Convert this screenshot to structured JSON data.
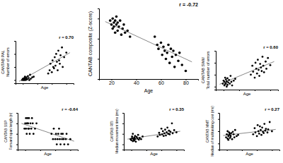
{
  "chart_data": [
    {
      "type": "scatter",
      "annotation": "r = 0.70",
      "x_label": "Age",
      "y_label": [
        "CANTAB PAL",
        "Number of errors"
      ],
      "x": [
        19,
        20,
        21,
        21,
        22,
        22,
        23,
        23,
        24,
        24,
        25,
        25,
        26,
        27,
        28,
        29,
        30,
        31,
        33,
        35,
        55,
        57,
        58,
        60,
        61,
        62,
        63,
        64,
        65,
        66,
        67,
        68,
        69,
        70,
        71,
        72,
        74,
        75,
        77,
        80
      ],
      "values": [
        0,
        2,
        0,
        1,
        3,
        0,
        5,
        2,
        1,
        0,
        4,
        2,
        1,
        6,
        3,
        0,
        8,
        2,
        4,
        5,
        10,
        15,
        25,
        12,
        30,
        20,
        18,
        35,
        22,
        40,
        28,
        15,
        45,
        30,
        25,
        38,
        50,
        20,
        35,
        42
      ],
      "trend": {
        "x": [
          15,
          85
        ],
        "y": [
          -2,
          42
        ]
      },
      "xlim": [
        10,
        90
      ],
      "xticks": [
        20,
        40,
        60,
        80
      ],
      "ylim": [
        -5,
        60
      ],
      "yticks": [
        0,
        20,
        40,
        60
      ],
      "tick_labels": false,
      "color": "#000000"
    },
    {
      "type": "scatter",
      "annotation": "r = -0.72",
      "x_label": "Age",
      "y_label": [
        "CANTAB composite (Z-score)"
      ],
      "x": [
        19,
        20,
        21,
        21,
        22,
        22,
        23,
        23,
        24,
        24,
        25,
        25,
        26,
        27,
        28,
        29,
        30,
        31,
        33,
        35,
        55,
        57,
        58,
        60,
        61,
        62,
        63,
        64,
        65,
        66,
        67,
        68,
        69,
        70,
        71,
        72,
        74,
        75,
        77,
        80
      ],
      "values": [
        0.9,
        0.7,
        1.0,
        0.5,
        0.8,
        0.6,
        0.9,
        0.3,
        0.7,
        1.1,
        0.4,
        0.8,
        0.6,
        0.9,
        0.2,
        0.5,
        0.7,
        0.3,
        0.4,
        0.1,
        0.1,
        -0.3,
        -0.5,
        -0.2,
        -0.8,
        -0.4,
        -0.6,
        -1.0,
        -0.7,
        -0.3,
        -1.2,
        -0.5,
        -0.9,
        -0.6,
        -1.4,
        -0.8,
        -1.1,
        -0.7,
        -1.3,
        -1.6
      ],
      "trend": {
        "x": [
          15,
          85
        ],
        "y": [
          0.85,
          -1.15
        ]
      },
      "xlim": [
        10,
        90
      ],
      "xticks": [
        20,
        40,
        60,
        80
      ],
      "ylim": [
        -2,
        1.5
      ],
      "yticks": [
        -2,
        -1,
        0,
        1
      ],
      "tick_labels": "x",
      "color": "#000000"
    },
    {
      "type": "scatter",
      "annotation": "r = 0.60",
      "x_label": "Age",
      "y_label": [
        "CANTAB SWM",
        "Total number of errors"
      ],
      "x": [
        19,
        20,
        21,
        21,
        22,
        22,
        23,
        23,
        24,
        24,
        25,
        25,
        26,
        27,
        28,
        29,
        30,
        31,
        33,
        35,
        55,
        57,
        58,
        60,
        61,
        62,
        63,
        64,
        65,
        66,
        67,
        68,
        69,
        70,
        71,
        72,
        74,
        75,
        77,
        80
      ],
      "values": [
        5,
        10,
        2,
        8,
        15,
        4,
        12,
        6,
        0,
        9,
        3,
        14,
        7,
        11,
        5,
        18,
        8,
        2,
        10,
        13,
        20,
        35,
        25,
        15,
        40,
        30,
        22,
        45,
        28,
        18,
        38,
        32,
        26,
        50,
        35,
        24,
        42,
        30,
        48,
        36
      ],
      "trend": {
        "x": [
          15,
          85
        ],
        "y": [
          4,
          42
        ]
      },
      "xlim": [
        10,
        90
      ],
      "xticks": [
        20,
        40,
        60,
        80
      ],
      "ylim": [
        -5,
        60
      ],
      "yticks": [
        0,
        20,
        40,
        60
      ],
      "tick_labels": false,
      "color": "#000000"
    },
    {
      "type": "scatter",
      "annotation": "r = -0.64",
      "x_label": "Age",
      "y_label": [
        "CANTAB SSP",
        "Forward span length (n)"
      ],
      "x": [
        19,
        20,
        21,
        21,
        22,
        22,
        23,
        23,
        24,
        24,
        25,
        25,
        26,
        27,
        28,
        29,
        30,
        31,
        33,
        35,
        55,
        57,
        58,
        60,
        61,
        62,
        63,
        64,
        65,
        66,
        67,
        68,
        69,
        70,
        71,
        72,
        74,
        75,
        77,
        80
      ],
      "values": [
        7,
        8,
        9,
        7,
        8,
        6,
        9,
        8,
        7,
        8,
        9,
        7,
        6,
        8,
        7,
        9,
        8,
        6,
        7,
        8,
        6,
        5,
        7,
        5,
        6,
        4,
        5,
        6,
        7,
        5,
        4,
        6,
        5,
        6,
        5,
        4,
        5,
        6,
        4,
        5
      ],
      "trend": {
        "x": [
          15,
          85
        ],
        "y": [
          8,
          4.6
        ]
      },
      "xlim": [
        10,
        90
      ],
      "xticks": [
        20,
        40,
        60,
        80
      ],
      "ylim": [
        3,
        10
      ],
      "yticks": [
        4,
        6,
        8,
        10
      ],
      "tick_labels": false,
      "color": "#000000"
    },
    {
      "type": "scatter",
      "annotation": "r = 0.35",
      "x_label": "Age",
      "y_label": [
        "CANTAB RTI",
        "Median movement time (ms)"
      ],
      "x": [
        19,
        20,
        21,
        21,
        22,
        22,
        23,
        23,
        24,
        24,
        25,
        25,
        26,
        27,
        28,
        29,
        30,
        31,
        33,
        35,
        55,
        57,
        58,
        60,
        61,
        62,
        63,
        64,
        65,
        66,
        67,
        68,
        69,
        70,
        71,
        72,
        74,
        75,
        77,
        80
      ],
      "values": [
        300,
        280,
        350,
        320,
        260,
        400,
        310,
        290,
        330,
        270,
        360,
        300,
        250,
        340,
        310,
        380,
        290,
        320,
        300,
        350,
        350,
        420,
        380,
        500,
        390,
        450,
        360,
        410,
        480,
        370,
        430,
        520,
        400,
        460,
        390,
        440,
        600,
        410,
        470,
        430
      ],
      "trend": {
        "x": [
          15,
          85
        ],
        "y": [
          300,
          450
        ]
      },
      "xlim": [
        10,
        90
      ],
      "xticks": [
        20,
        40,
        60,
        80
      ],
      "ylim": [
        100,
        800
      ],
      "yticks": [
        200,
        400,
        600,
        800
      ],
      "tick_labels": false,
      "color": "#000000"
    },
    {
      "type": "scatter",
      "annotation": "r = 0.27",
      "x_label": "Age",
      "y_label": [
        "CANTAB MMT",
        "Median of multitasking cost (ms)"
      ],
      "x": [
        19,
        20,
        21,
        21,
        22,
        22,
        23,
        23,
        24,
        24,
        25,
        25,
        26,
        27,
        28,
        29,
        30,
        31,
        33,
        35,
        55,
        57,
        58,
        60,
        61,
        62,
        63,
        64,
        65,
        66,
        67,
        68,
        69,
        70,
        71,
        72,
        74,
        75,
        77,
        80
      ],
      "values": [
        100,
        150,
        80,
        200,
        120,
        60,
        180,
        140,
        90,
        160,
        110,
        130,
        170,
        70,
        190,
        150,
        100,
        220,
        120,
        140,
        150,
        250,
        180,
        120,
        300,
        200,
        160,
        280,
        220,
        140,
        260,
        190,
        170,
        320,
        210,
        240,
        180,
        230,
        350,
        200
      ],
      "trend": {
        "x": [
          15,
          85
        ],
        "y": [
          130,
          230
        ]
      },
      "xlim": [
        10,
        90
      ],
      "xticks": [
        20,
        40,
        60,
        80
      ],
      "ylim": [
        -100,
        500
      ],
      "yticks": [
        0,
        200,
        400
      ],
      "tick_labels": false,
      "color": "#000000"
    }
  ]
}
